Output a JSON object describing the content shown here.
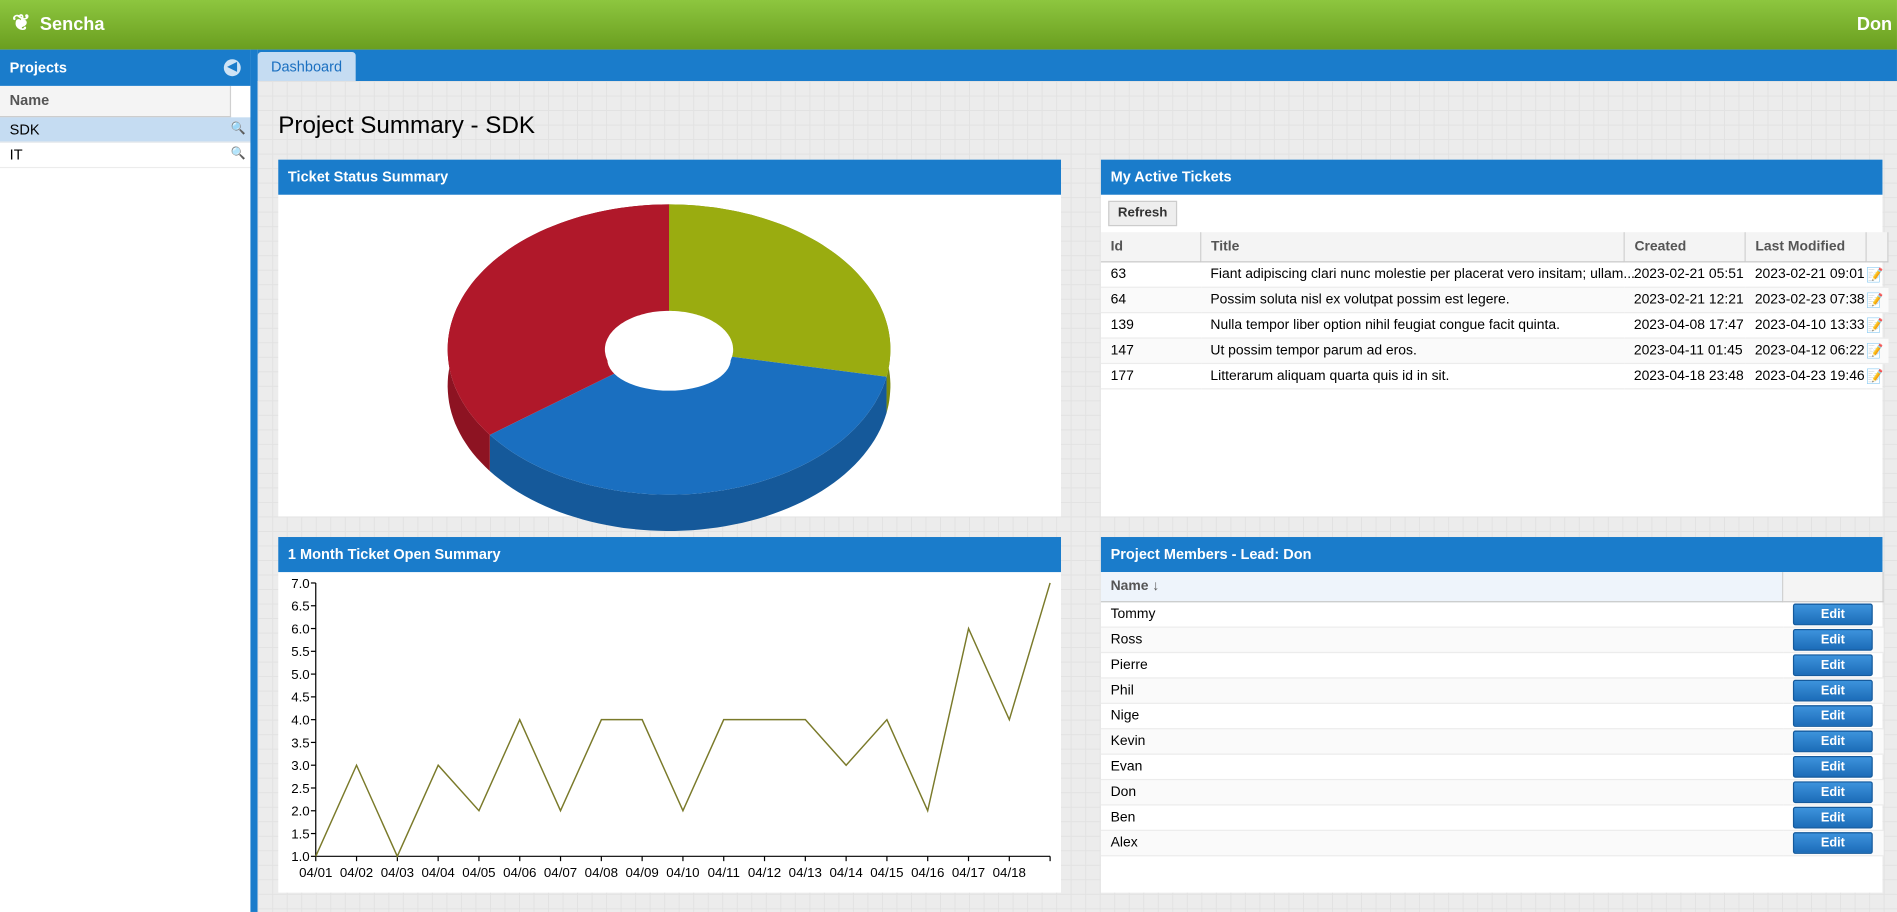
{
  "header": {
    "brand": "Sencha",
    "user": "Don"
  },
  "sidebar": {
    "title": "Projects",
    "column": "Name",
    "rows": [
      "SDK",
      "IT"
    ]
  },
  "tab": "Dashboard",
  "page_title": "Project Summary - SDK",
  "active_tickets": {
    "title": "My Active Tickets",
    "refresh": "Refresh",
    "columns": [
      "Id",
      "Title",
      "Created",
      "Last Modified"
    ],
    "rows": [
      [
        "63",
        "Fiant adipiscing clari nunc molestie per placerat vero insitam; ullam...",
        "2023-02-21 05:51",
        "2023-02-21 09:01"
      ],
      [
        "64",
        "Possim soluta nisl ex volutpat possim est legere.",
        "2023-02-21 12:21",
        "2023-02-23 07:38"
      ],
      [
        "139",
        "Nulla tempor liber option nihil feugiat congue facit quinta.",
        "2023-04-08 17:47",
        "2023-04-10 13:33"
      ],
      [
        "147",
        "Ut possim tempor parum ad eros.",
        "2023-04-11 01:45",
        "2023-04-12 06:22"
      ],
      [
        "177",
        "Litterarum aliquam quarta quis id in sit.",
        "2023-04-18 23:48",
        "2023-04-23 19:46"
      ]
    ]
  },
  "members": {
    "title": "Project Members - Lead: Don",
    "column": "Name ↓",
    "button": "Edit",
    "rows": [
      "Tommy",
      "Ross",
      "Pierre",
      "Phil",
      "Nige",
      "Kevin",
      "Evan",
      "Don",
      "Ben",
      "Alex"
    ]
  },
  "chart_data": [
    {
      "type": "pie",
      "title": "Ticket Status Summary",
      "categories": [
        null,
        null,
        null
      ],
      "values": [
        28,
        37,
        35
      ],
      "colors": [
        "#9aac10",
        "#1a6fc0",
        "#b0182a"
      ],
      "donut": true
    },
    {
      "type": "line",
      "title": "1 Month Ticket Open Summary",
      "categories": [
        "04/01",
        "04/02",
        "04/03",
        "04/04",
        "04/05",
        "04/06",
        "04/07",
        "04/08",
        "04/09",
        "04/10",
        "04/11",
        "04/12",
        "04/13",
        "04/14",
        "04/15",
        "04/16",
        "04/17",
        "04/18",
        null
      ],
      "series": [
        {
          "color": "#7a7a2a",
          "values": [
            1,
            3,
            1,
            3,
            2,
            4,
            2,
            4,
            4,
            2,
            4,
            4,
            4,
            3,
            4,
            2,
            6,
            4,
            7
          ]
        }
      ],
      "ylim": [
        1,
        7
      ],
      "yticks": [
        {
          "value": 1,
          "label": "1.0"
        },
        {
          "value": 1.5,
          "label": "1.5"
        },
        {
          "value": 2,
          "label": "2.0"
        },
        {
          "value": 2.5,
          "label": "2.5"
        },
        {
          "value": 3,
          "label": "3.0"
        },
        {
          "value": 3.5,
          "label": "3.5"
        },
        {
          "value": 4,
          "label": "4.0"
        },
        {
          "value": 4.5,
          "label": "4.5"
        },
        {
          "value": 5,
          "label": "5.0"
        },
        {
          "value": 5.5,
          "label": "5.5"
        },
        {
          "value": 6,
          "label": "6.0"
        },
        {
          "value": 6.5,
          "label": "6.5"
        },
        {
          "value": 7,
          "label": "7.0"
        }
      ]
    }
  ]
}
